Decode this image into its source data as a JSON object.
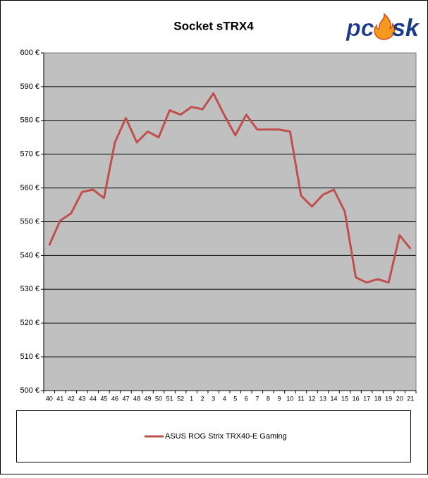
{
  "chart_data": {
    "type": "line",
    "title": "Socket sTRX4",
    "logo": {
      "left": "pc",
      "right": "sk"
    },
    "categories": [
      "40",
      "41",
      "42",
      "43",
      "44",
      "45",
      "46",
      "47",
      "48",
      "49",
      "50",
      "51",
      "52",
      "1",
      "2",
      "3",
      "4",
      "5",
      "6",
      "7",
      "8",
      "9",
      "10",
      "11",
      "12",
      "13",
      "14",
      "15",
      "16",
      "17",
      "18",
      "19",
      "20",
      "21"
    ],
    "series": [
      {
        "name": "ASUS ROG Strix TRX40-E Gaming",
        "color": "#c0504d",
        "values": [
          543,
          550.3,
          552.5,
          558.8,
          559.5,
          557,
          573.5,
          580.7,
          573.5,
          576.7,
          575,
          583,
          581.7,
          584,
          583.3,
          588,
          581.5,
          575.6,
          581.7,
          577.3,
          577.3,
          577.3,
          576.7,
          557.7,
          554.5,
          558,
          559.5,
          553,
          533.5,
          532,
          533,
          532,
          546,
          542
        ]
      }
    ],
    "ylim": [
      500,
      600
    ],
    "yticks": [
      {
        "value": 500,
        "label": "500 €"
      },
      {
        "value": 510,
        "label": "510 €"
      },
      {
        "value": 520,
        "label": "520 €"
      },
      {
        "value": 530,
        "label": "530 €"
      },
      {
        "value": 540,
        "label": "540 €"
      },
      {
        "value": 550,
        "label": "550 €"
      },
      {
        "value": 560,
        "label": "560 €"
      },
      {
        "value": 570,
        "label": "570 €"
      },
      {
        "value": 580,
        "label": "580 €"
      },
      {
        "value": 590,
        "label": "590 €"
      },
      {
        "value": 600,
        "label": "600 €"
      }
    ],
    "grid": true,
    "plot_background": "#c0c0c0"
  }
}
